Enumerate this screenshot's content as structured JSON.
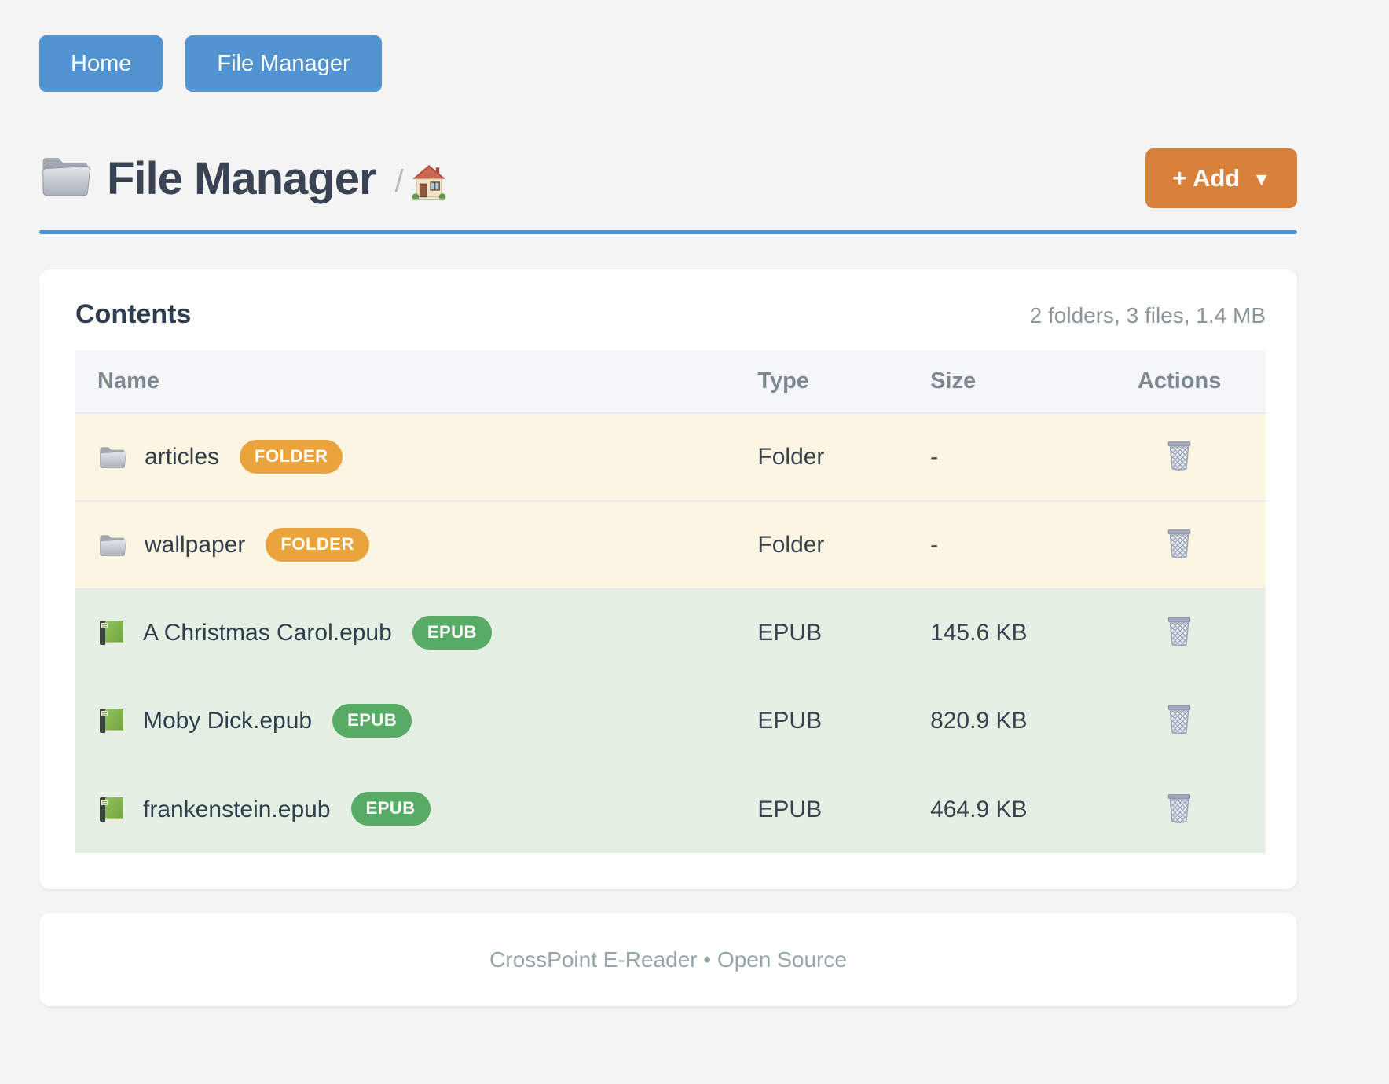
{
  "nav": {
    "items": [
      {
        "label": "Home"
      },
      {
        "label": "File Manager"
      }
    ]
  },
  "header": {
    "title": "File Manager",
    "title_icon": "folder-icon",
    "breadcrumb_separator": "/",
    "breadcrumb_home_icon": "home-icon",
    "add_button": {
      "label": "+ Add",
      "caret": "▼"
    }
  },
  "panel": {
    "title": "Contents",
    "summary": "2 folders, 3 files, 1.4 MB",
    "table": {
      "columns": [
        "Name",
        "Type",
        "Size",
        "Actions"
      ],
      "rows": [
        {
          "name": "articles",
          "badge": "FOLDER",
          "type": "Folder",
          "size": "-",
          "kind": "folder",
          "icon": "folder-icon",
          "action_icon": "trash-icon"
        },
        {
          "name": "wallpaper",
          "badge": "FOLDER",
          "type": "Folder",
          "size": "-",
          "kind": "folder",
          "icon": "folder-icon",
          "action_icon": "trash-icon"
        },
        {
          "name": "A Christmas Carol.epub",
          "badge": "EPUB",
          "type": "EPUB",
          "size": "145.6 KB",
          "kind": "epub",
          "icon": "book-icon",
          "action_icon": "trash-icon"
        },
        {
          "name": "Moby Dick.epub",
          "badge": "EPUB",
          "type": "EPUB",
          "size": "820.9 KB",
          "kind": "epub",
          "icon": "book-icon",
          "action_icon": "trash-icon"
        },
        {
          "name": "frankenstein.epub",
          "badge": "EPUB",
          "type": "EPUB",
          "size": "464.9 KB",
          "kind": "epub",
          "icon": "book-icon",
          "action_icon": "trash-icon"
        }
      ]
    }
  },
  "footer": {
    "text": "CrossPoint E-Reader • Open Source"
  },
  "colors": {
    "nav_button": "#5294d2",
    "accent_rule": "#4a91d9",
    "add_button": "#d8813a",
    "folder_badge": "#e9a43e",
    "epub_badge": "#57ab64",
    "folder_row_bg": "#fcf5e1",
    "epub_row_bg": "#e5f0e5",
    "page_bg": "#f4f4f5",
    "title_text": "#394353"
  }
}
